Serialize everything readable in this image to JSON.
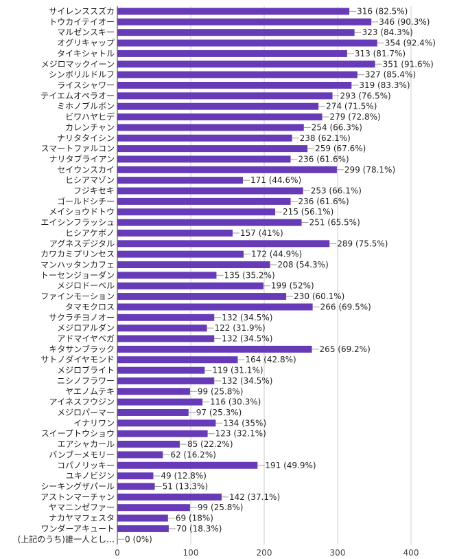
{
  "chart_data": {
    "type": "bar",
    "orientation": "horizontal",
    "bar_color": "#673ab7",
    "categories": [
      "サイレンススズカ",
      "トウカイテイオー",
      "マルゼンスキー",
      "オグリキャップ",
      "タイキシャトル",
      "メジロマックイーン",
      "シンボリルドルフ",
      "ライスシャワー",
      "テイエムオペラオー",
      "ミホノブルボン",
      "ビワハヤヒデ",
      "カレンチャン",
      "ナリタタイシン",
      "スマートファルコン",
      "ナリタブライアン",
      "セイウンスカイ",
      "ヒシアマゾン",
      "フジキセキ",
      "ゴールドシチー",
      "メイショウドトウ",
      "エイシンフラッシュ",
      "ヒシアケボノ",
      "アグネスデジタル",
      "カワカミプリンセス",
      "マンハッタンカフェ",
      "トーセンジョーダン",
      "メジロドーベル",
      "ファインモーション",
      "タマモクロス",
      "サクラチヨノオー",
      "メジロアルダン",
      "アドマイヤベガ",
      "キタサンブラック",
      "サトノダイヤモンド",
      "メジロブライト",
      "ニシノフラワー",
      "ヤエノムテキ",
      "アイネスフウジン",
      "メジロパーマー",
      "イナリワン",
      "スイープトウショウ",
      "エアシャカール",
      "バンブーメモリー",
      "コパノリッキー",
      "ユキノビジン",
      "シーキングザパール",
      "アストンマーチャン",
      "ヤマニンゼファー",
      "ナカヤマフェスタ",
      "ワンダーアキュート",
      "(上記のうち)誰一人とし…"
    ],
    "values": [
      316,
      346,
      323,
      354,
      313,
      351,
      327,
      319,
      293,
      274,
      279,
      254,
      238,
      259,
      236,
      299,
      171,
      253,
      236,
      215,
      251,
      157,
      289,
      172,
      208,
      135,
      199,
      230,
      266,
      132,
      122,
      132,
      265,
      164,
      119,
      132,
      99,
      116,
      97,
      134,
      123,
      85,
      62,
      191,
      49,
      51,
      142,
      99,
      69,
      70,
      0
    ],
    "value_labels": [
      "316 (82.5%)",
      "346 (90.3%)",
      "323 (84.3%)",
      "354 (92.4%)",
      "313 (81.7%)",
      "351 (91.6%)",
      "327 (85.4%)",
      "319 (83.3%)",
      "293 (76.5%)",
      "274 (71.5%)",
      "279 (72.8%)",
      "254 (66.3%)",
      "238 (62.1%)",
      "259 (67.6%)",
      "236 (61.6%)",
      "299 (78.1%)",
      "171 (44.6%)",
      "253 (66.1%)",
      "236 (61.6%)",
      "215 (56.1%)",
      "251 (65.5%)",
      "157 (41%)",
      "289 (75.5%)",
      "172 (44.9%)",
      "208 (54.3%)",
      "135 (35.2%)",
      "199 (52%)",
      "230 (60.1%)",
      "266 (69.5%)",
      "132 (34.5%)",
      "122 (31.9%)",
      "132 (34.5%)",
      "265 (69.2%)",
      "164 (42.8%)",
      "119 (31.1%)",
      "132 (34.5%)",
      "99 (25.8%)",
      "116 (30.3%)",
      "97 (25.3%)",
      "134 (35%)",
      "123 (32.1%)",
      "85 (22.2%)",
      "62 (16.2%)",
      "191 (49.9%)",
      "49 (12.8%)",
      "51 (13.3%)",
      "142 (37.1%)",
      "99 (25.8%)",
      "69 (18%)",
      "70 (18.3%)",
      "0 (0%)"
    ],
    "xlim": [
      0,
      400
    ],
    "xticks": [
      "0",
      "100",
      "200",
      "300",
      "400"
    ],
    "grid": true
  }
}
